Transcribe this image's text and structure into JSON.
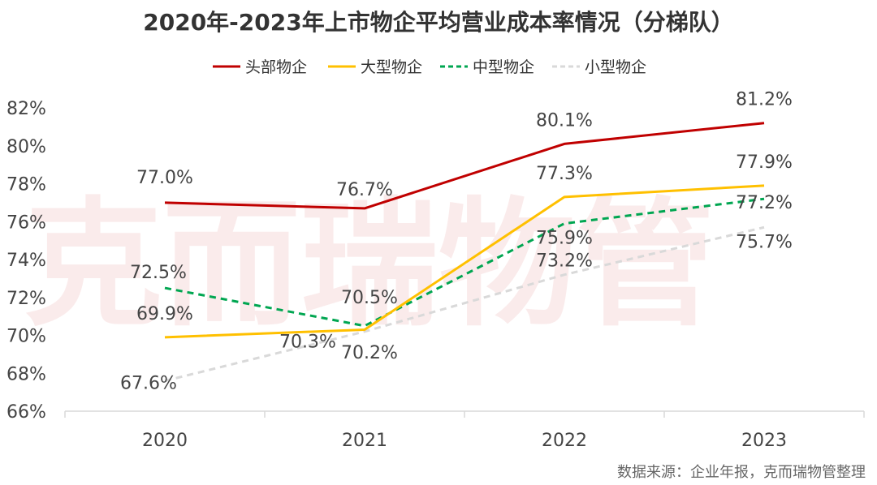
{
  "chart_data": {
    "type": "line",
    "title": "2020年-2023年上市物企平均营业成本率情况（分梯队）",
    "categories": [
      "2020",
      "2021",
      "2022",
      "2023"
    ],
    "ylim": [
      66,
      82
    ],
    "yticks": [
      "66%",
      "68%",
      "70%",
      "72%",
      "74%",
      "76%",
      "78%",
      "80%",
      "82%"
    ],
    "legend_position": "top-center",
    "grid": false,
    "series": [
      {
        "name": "头部物企",
        "color": "#c00000",
        "dash": "solid",
        "values": [
          77.0,
          76.7,
          80.1,
          81.2
        ],
        "labels": [
          "77.0%",
          "76.7%",
          "80.1%",
          "81.2%"
        ]
      },
      {
        "name": "大型物企",
        "color": "#ffc000",
        "dash": "solid",
        "values": [
          69.9,
          70.3,
          77.3,
          77.9
        ],
        "labels": [
          "69.9%",
          "70.3%",
          "77.3%",
          "77.9%"
        ]
      },
      {
        "name": "中型物企",
        "color": "#00a651",
        "dash": "dashed",
        "values": [
          72.5,
          70.5,
          75.9,
          77.2
        ],
        "labels": [
          "72.5%",
          "70.5%",
          "75.9%",
          "77.2%"
        ]
      },
      {
        "name": "小型物企",
        "color": "#d9d9d9",
        "dash": "dashed",
        "values": [
          67.6,
          70.2,
          73.2,
          75.7
        ],
        "labels": [
          "67.6%",
          "70.2%",
          "73.2%",
          "75.7%"
        ]
      }
    ]
  },
  "source": "数据来源：企业年报，克而瑞物管整理",
  "watermark": "克而瑞物管"
}
